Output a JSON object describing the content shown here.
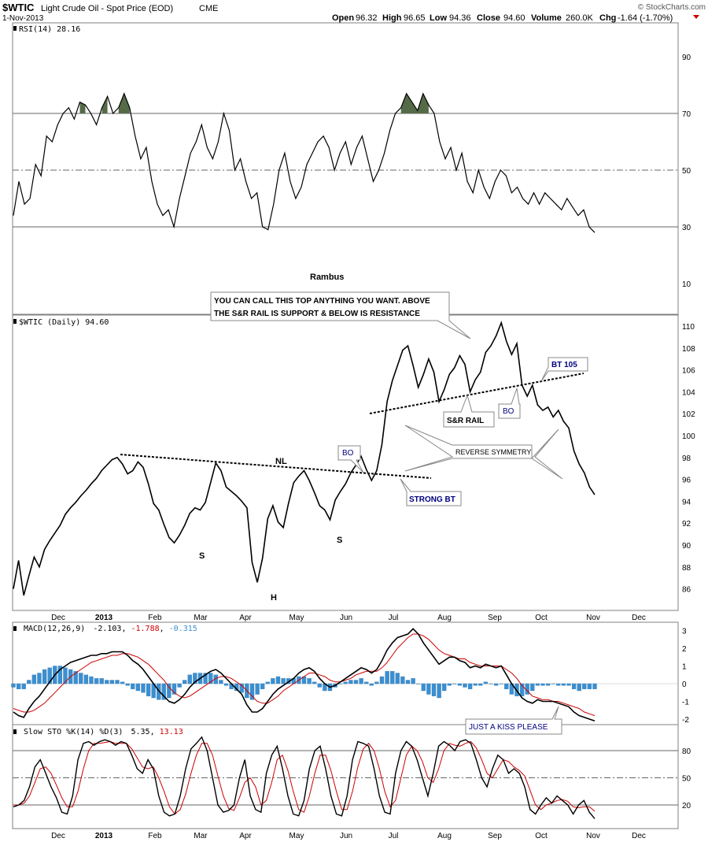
{
  "header": {
    "symbol": "$WTIC",
    "description": "Light Crude Oil - Spot Price (EOD)",
    "exchange": "CME",
    "date": "1-Nov-2013",
    "open_label": "Open",
    "open": "96.32",
    "high_label": "High",
    "high": "96.65",
    "low_label": "Low",
    "low": "94.36",
    "close_label": "Close",
    "close": "94.60",
    "volume_label": "Volume",
    "volume": "260.0K",
    "chg_label": "Chg",
    "chg": "-1.64 (-1.70%)",
    "watermark": "© StockCharts.com"
  },
  "colors": {
    "frame": "#808080",
    "price": "#000000",
    "macd_signal": "#cc0000",
    "histogram": "#3b8fd1",
    "rsi_fill": "#556b48",
    "annotation": "#000080"
  },
  "chart_data": [
    {
      "type": "line",
      "panel": "rsi",
      "legend": "RSI(14) 28.16",
      "ylim": [
        0,
        100
      ],
      "ticks": [
        90,
        70,
        50,
        30,
        10
      ],
      "reference_lines": {
        "solid": [
          70,
          30
        ],
        "dashed": [
          50
        ]
      },
      "watermark_text": "Rambus",
      "values": [
        34,
        46,
        38,
        40,
        52,
        48,
        62,
        60,
        66,
        70,
        72,
        68,
        74,
        73,
        70,
        66,
        72,
        76,
        70,
        72,
        77,
        72,
        62,
        54,
        58,
        46,
        38,
        34,
        36,
        30,
        40,
        48,
        56,
        60,
        66,
        58,
        54,
        60,
        70,
        64,
        50,
        54,
        46,
        40,
        42,
        30,
        29,
        38,
        50,
        56,
        46,
        40,
        44,
        52,
        56,
        60,
        62,
        58,
        50,
        56,
        60,
        52,
        58,
        62,
        54,
        46,
        50,
        56,
        64,
        70,
        72,
        77,
        74,
        71,
        77,
        73,
        70,
        60,
        54,
        58,
        50,
        56,
        46,
        42,
        50,
        44,
        40,
        46,
        50,
        48,
        42,
        44,
        40,
        38,
        42,
        38,
        42,
        40,
        38,
        36,
        40,
        37,
        34,
        36,
        30,
        28
      ]
    },
    {
      "type": "line",
      "panel": "price",
      "legend": "$WTIC (Daily) 94.60",
      "ylim": [
        84.5,
        111.5
      ],
      "ticks": [
        110,
        108,
        106,
        104,
        102,
        100,
        98,
        96,
        94,
        92,
        90,
        88,
        86
      ],
      "x_labels": [
        "Dec",
        "2013",
        "Feb",
        "Mar",
        "Apr",
        "May",
        "Jun",
        "Jul",
        "Aug",
        "Sep",
        "Oct",
        "Nov",
        "Dec"
      ],
      "values": [
        86.0,
        88.6,
        85.4,
        87.2,
        88.9,
        88.0,
        89.6,
        90.4,
        91.1,
        91.8,
        92.8,
        93.4,
        93.9,
        94.5,
        95.0,
        95.6,
        96.1,
        96.8,
        97.3,
        97.8,
        98.0,
        97.4,
        96.5,
        96.8,
        97.6,
        97.1,
        95.6,
        93.8,
        93.2,
        91.9,
        90.7,
        90.2,
        90.9,
        91.8,
        92.9,
        93.4,
        93.2,
        93.9,
        95.7,
        97.5,
        96.8,
        95.3,
        94.9,
        94.5,
        94.0,
        93.4,
        88.4,
        86.6,
        88.8,
        92.4,
        93.6,
        92.1,
        91.6,
        93.8,
        95.7,
        96.3,
        96.8,
        95.9,
        94.8,
        93.6,
        93.2,
        92.3,
        94.1,
        94.9,
        95.6,
        96.6,
        97.3,
        98.1,
        96.9,
        95.9,
        96.8,
        99.2,
        103.1,
        105.0,
        106.4,
        107.8,
        108.2,
        106.4,
        104.4,
        105.6,
        107.0,
        105.8,
        103.1,
        104.2,
        105.6,
        106.2,
        107.3,
        106.5,
        104.0,
        105.1,
        105.8,
        107.6,
        108.2,
        109.1,
        110.3,
        108.6,
        107.4,
        108.4,
        104.6,
        103.6,
        104.6,
        102.8,
        102.3,
        102.6,
        101.7,
        102.3,
        101.3,
        100.7,
        98.6,
        97.4,
        96.6,
        95.3,
        94.6
      ],
      "annotations": [
        {
          "text": "YOU CAN CALL THIS TOP ANYTHING YOU WANT. ABOVE THE S&R RAIL IS SUPPORT & BELOW IS RESISTANCE"
        },
        {
          "text": "BT 105"
        },
        {
          "text": "S&R RAIL"
        },
        {
          "text": "BO"
        },
        {
          "text": "REVERSE SYMMETRY"
        },
        {
          "text": "BO"
        },
        {
          "text": "STRONG BT"
        },
        {
          "text": "NL"
        },
        {
          "text": "S"
        },
        {
          "text": "H"
        },
        {
          "text": "S"
        }
      ]
    },
    {
      "type": "line",
      "panel": "macd",
      "legend_name": "MACD(12,26,9)",
      "legend_macd": "-2.103",
      "legend_signal": "-1.788",
      "legend_hist": "-0.315",
      "ylim": [
        -2.3,
        3.3
      ],
      "ticks": [
        3,
        2,
        1,
        0,
        -1,
        -2
      ],
      "annotation": "JUST A KISS PLEASE",
      "macd": [
        -1.6,
        -1.8,
        -1.9,
        -1.4,
        -1.0,
        -0.7,
        -0.3,
        0.1,
        0.5,
        0.8,
        1.0,
        1.2,
        1.3,
        1.4,
        1.5,
        1.6,
        1.6,
        1.7,
        1.7,
        1.8,
        1.8,
        1.8,
        1.6,
        1.3,
        1.1,
        0.8,
        0.4,
        0.0,
        -0.4,
        -0.7,
        -1.0,
        -1.1,
        -0.9,
        -0.6,
        -0.2,
        0.1,
        0.3,
        0.5,
        0.7,
        0.8,
        0.6,
        0.3,
        0.0,
        -0.3,
        -0.6,
        -1.2,
        -1.6,
        -1.6,
        -1.4,
        -1.0,
        -0.6,
        -0.3,
        -0.1,
        0.1,
        0.3,
        0.6,
        0.8,
        0.9,
        0.7,
        0.3,
        0.0,
        -0.2,
        -0.1,
        0.1,
        0.3,
        0.5,
        0.7,
        0.9,
        0.8,
        0.6,
        0.8,
        1.3,
        1.9,
        2.3,
        2.6,
        2.7,
        2.8,
        3.1,
        2.8,
        2.3,
        1.9,
        1.5,
        1.1,
        1.3,
        1.5,
        1.5,
        1.3,
        1.2,
        0.9,
        1.0,
        0.9,
        1.1,
        1.0,
        0.9,
        1.0,
        0.5,
        0.0,
        -0.4,
        -0.8,
        -1.0,
        -1.1,
        -0.9,
        -1.0,
        -1.0,
        -1.0,
        -1.1,
        -1.2,
        -1.3,
        -1.6,
        -1.8,
        -1.9,
        -2.0,
        -2.1
      ],
      "signal": [
        -1.4,
        -1.5,
        -1.6,
        -1.6,
        -1.5,
        -1.3,
        -1.1,
        -0.8,
        -0.5,
        -0.2,
        0.1,
        0.4,
        0.6,
        0.8,
        1.0,
        1.2,
        1.3,
        1.4,
        1.5,
        1.6,
        1.6,
        1.7,
        1.7,
        1.6,
        1.5,
        1.3,
        1.1,
        0.8,
        0.5,
        0.2,
        -0.2,
        -0.5,
        -0.7,
        -0.8,
        -0.7,
        -0.5,
        -0.3,
        -0.1,
        0.1,
        0.3,
        0.4,
        0.4,
        0.3,
        0.1,
        -0.1,
        -0.4,
        -0.7,
        -1.0,
        -1.1,
        -1.1,
        -0.9,
        -0.7,
        -0.4,
        -0.2,
        0.0,
        0.2,
        0.4,
        0.6,
        0.6,
        0.5,
        0.4,
        0.2,
        0.1,
        0.1,
        0.2,
        0.3,
        0.5,
        0.6,
        0.7,
        0.7,
        0.7,
        0.9,
        1.2,
        1.6,
        2.0,
        2.3,
        2.6,
        2.8,
        2.8,
        2.7,
        2.5,
        2.2,
        1.9,
        1.7,
        1.6,
        1.5,
        1.4,
        1.4,
        1.2,
        1.1,
        1.0,
        1.0,
        1.0,
        1.0,
        1.0,
        0.8,
        0.6,
        0.3,
        -0.1,
        -0.4,
        -0.7,
        -0.8,
        -0.9,
        -0.9,
        -1.0,
        -1.0,
        -1.1,
        -1.2,
        -1.3,
        -1.4,
        -1.6,
        -1.7,
        -1.8
      ],
      "histogram": [
        -0.2,
        -0.3,
        -0.3,
        0.2,
        0.5,
        0.6,
        0.8,
        0.9,
        1.0,
        1.0,
        0.9,
        0.8,
        0.7,
        0.6,
        0.5,
        0.4,
        0.3,
        0.3,
        0.2,
        0.2,
        0.2,
        0.1,
        -0.1,
        -0.3,
        -0.4,
        -0.5,
        -0.7,
        -0.8,
        -0.9,
        -0.9,
        -0.8,
        -0.6,
        -0.2,
        0.2,
        0.5,
        0.6,
        0.6,
        0.6,
        0.6,
        0.5,
        0.2,
        -0.1,
        -0.3,
        -0.4,
        -0.5,
        -0.8,
        -0.9,
        -0.6,
        -0.3,
        0.1,
        0.3,
        0.4,
        0.3,
        0.3,
        0.3,
        0.4,
        0.4,
        0.3,
        0.1,
        -0.2,
        -0.4,
        -0.4,
        -0.2,
        0.0,
        0.1,
        0.2,
        0.2,
        0.3,
        0.1,
        -0.1,
        0.1,
        0.4,
        0.7,
        0.7,
        0.6,
        0.4,
        0.2,
        0.3,
        0.0,
        -0.4,
        -0.6,
        -0.7,
        -0.8,
        -0.4,
        -0.1,
        0.0,
        -0.1,
        -0.2,
        -0.3,
        -0.1,
        -0.1,
        0.1,
        0.0,
        -0.1,
        0.0,
        -0.3,
        -0.6,
        -0.7,
        -0.7,
        -0.6,
        -0.4,
        -0.1,
        -0.1,
        -0.1,
        0.0,
        -0.1,
        -0.1,
        -0.1,
        -0.3,
        -0.4,
        -0.3,
        -0.3,
        -0.3
      ]
    },
    {
      "type": "line",
      "panel": "stochastic",
      "legend_name": "Slow STO %K(14) %D(3)",
      "legend_k": "5.35",
      "legend_d": "13.13",
      "ylim": [
        0,
        100
      ],
      "ticks": [
        80,
        50,
        20
      ],
      "reference_lines": {
        "solid": [
          80,
          20
        ],
        "dashed": [
          50
        ]
      },
      "x_labels": [
        "Dec",
        "2013",
        "Feb",
        "Mar",
        "Apr",
        "May",
        "Jun",
        "Jul",
        "Aug",
        "Sep",
        "Oct",
        "Nov",
        "Dec"
      ],
      "k": [
        18,
        20,
        25,
        40,
        62,
        70,
        55,
        40,
        28,
        12,
        10,
        30,
        70,
        88,
        90,
        86,
        90,
        92,
        90,
        86,
        90,
        88,
        75,
        60,
        55,
        70,
        60,
        30,
        12,
        8,
        10,
        30,
        60,
        82,
        88,
        95,
        80,
        50,
        20,
        12,
        14,
        20,
        50,
        70,
        30,
        15,
        12,
        55,
        75,
        85,
        60,
        30,
        10,
        8,
        25,
        60,
        80,
        85,
        60,
        30,
        10,
        8,
        30,
        70,
        90,
        88,
        85,
        60,
        30,
        12,
        10,
        55,
        80,
        90,
        85,
        70,
        50,
        30,
        55,
        85,
        90,
        86,
        80,
        90,
        92,
        88,
        70,
        50,
        40,
        60,
        75,
        70,
        55,
        60,
        55,
        40,
        15,
        10,
        20,
        28,
        22,
        30,
        25,
        20,
        10,
        20,
        25,
        12,
        5
      ],
      "d": [
        20,
        20,
        22,
        30,
        45,
        60,
        62,
        55,
        42,
        28,
        18,
        18,
        35,
        60,
        80,
        88,
        88,
        89,
        90,
        88,
        88,
        88,
        82,
        72,
        62,
        60,
        62,
        50,
        35,
        18,
        10,
        15,
        32,
        55,
        75,
        88,
        88,
        75,
        52,
        30,
        16,
        14,
        28,
        45,
        50,
        40,
        20,
        25,
        45,
        70,
        75,
        58,
        35,
        15,
        12,
        30,
        55,
        75,
        75,
        58,
        35,
        15,
        15,
        35,
        62,
        82,
        88,
        80,
        60,
        35,
        18,
        25,
        50,
        75,
        85,
        80,
        68,
        50,
        45,
        60,
        80,
        88,
        86,
        85,
        88,
        90,
        83,
        70,
        55,
        50,
        60,
        70,
        68,
        62,
        58,
        52,
        36,
        20,
        15,
        20,
        22,
        25,
        26,
        24,
        18,
        17,
        18,
        18,
        13
      ]
    }
  ]
}
